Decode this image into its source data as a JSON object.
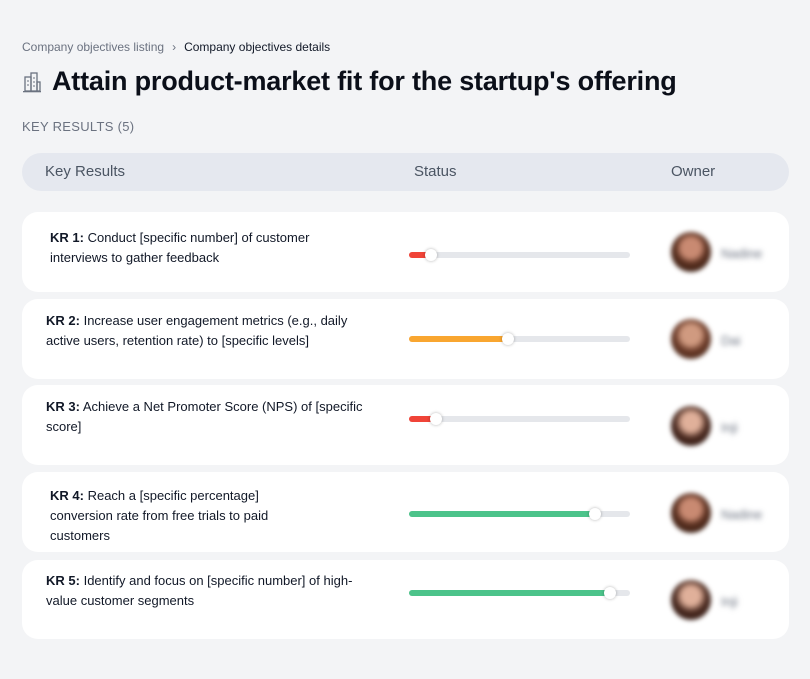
{
  "breadcrumb": {
    "parent": "Company objectives listing",
    "separator": "›",
    "current": "Company objectives details"
  },
  "objective": {
    "title": "Attain product-market fit for the startup's offering",
    "icon": "building-icon"
  },
  "key_results_count_label": "KEY RESULTS (5)",
  "table": {
    "headers": {
      "key_results": "Key Results",
      "status": "Status",
      "owner": "Owner"
    }
  },
  "colors": {
    "red": "#f04438",
    "orange": "#f9a630",
    "green": "#4cc38a",
    "track": "#e5e7eb"
  },
  "key_results": [
    {
      "label": "KR 1:",
      "text": "Conduct [specific number] of customer interviews to gather feedback",
      "progress": 0.1,
      "status_color": "#f04438",
      "owner": "Nadine",
      "avatar_icon": "avatar-icon"
    },
    {
      "label": "KR 2:",
      "text": "Increase user engagement metrics (e.g., daily active users, retention rate) to [specific levels]",
      "progress": 0.45,
      "status_color": "#f9a630",
      "owner": "Dai",
      "avatar_icon": "avatar-icon"
    },
    {
      "label": "KR 3:",
      "text": "Achieve a Net Promoter Score (NPS) of [specific score]",
      "progress": 0.12,
      "status_color": "#f04438",
      "owner": "Inji",
      "avatar_icon": "avatar-icon"
    },
    {
      "label": "KR 4:",
      "text": "Reach a [specific percentage] conversion rate from free trials to paid customers",
      "progress": 0.84,
      "status_color": "#4cc38a",
      "owner": "Nadine",
      "avatar_icon": "avatar-icon"
    },
    {
      "label": "KR 5:",
      "text": "Identify and focus on [specific number] of high-value customer segments",
      "progress": 0.91,
      "status_color": "#4cc38a",
      "owner": "Inji",
      "avatar_icon": "avatar-icon"
    }
  ]
}
